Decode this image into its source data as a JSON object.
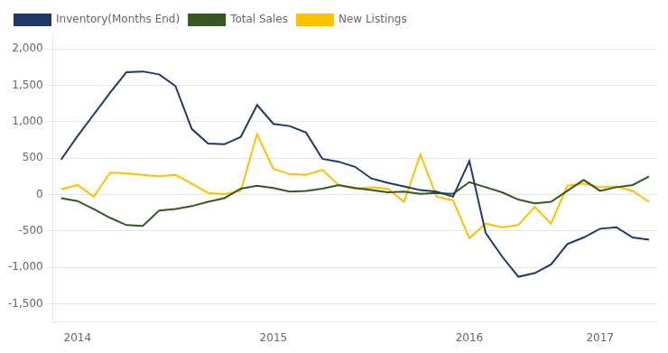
{
  "chart_data": {
    "type": "line",
    "categories": [
      null,
      "2014",
      null,
      null,
      null,
      null,
      null,
      null,
      null,
      null,
      null,
      null,
      null,
      "2015",
      null,
      null,
      null,
      null,
      null,
      null,
      null,
      null,
      null,
      null,
      null,
      "2016",
      null,
      null,
      null,
      null,
      null,
      null,
      null,
      "2017",
      null,
      null,
      null
    ],
    "series": [
      {
        "name": "Inventory(Months End)",
        "color": "#1F3864",
        "values": [
          480,
          800,
          1100,
          1400,
          1680,
          1690,
          1650,
          1490,
          900,
          700,
          690,
          790,
          1230,
          970,
          940,
          850,
          490,
          450,
          380,
          220,
          160,
          110,
          60,
          40,
          -30,
          460,
          -530,
          -850,
          -1130,
          -1080,
          -960,
          -680,
          -590,
          -470,
          -450,
          -590,
          -620
        ]
      },
      {
        "name": "Total Sales",
        "color": "#375623",
        "values": [
          -50,
          -90,
          -200,
          -320,
          -420,
          -430,
          -220,
          -200,
          -160,
          -100,
          -50,
          80,
          120,
          90,
          40,
          50,
          80,
          130,
          90,
          60,
          30,
          40,
          10,
          20,
          10,
          170,
          100,
          30,
          -70,
          -120,
          -100,
          50,
          200,
          50,
          100,
          130,
          250
        ]
      },
      {
        "name": "New Listings",
        "color": "#FFC000",
        "values": [
          70,
          130,
          -30,
          300,
          290,
          270,
          250,
          270,
          150,
          20,
          5,
          50,
          830,
          350,
          280,
          270,
          340,
          130,
          80,
          100,
          80,
          -100,
          550,
          -30,
          -80,
          -600,
          -400,
          -450,
          -420,
          -170,
          -400,
          120,
          150,
          100,
          110,
          50,
          -100
        ]
      }
    ],
    "ylim": [
      -1750,
      2200
    ],
    "yticks": [
      {
        "value": -1500,
        "label": "-1,500"
      },
      {
        "value": -1000,
        "label": "-1,000"
      },
      -500,
      0,
      500,
      {
        "value": 1000,
        "label": "1,000"
      },
      {
        "value": 1500,
        "label": "1,500"
      },
      {
        "value": 2000,
        "label": "2,000"
      }
    ],
    "grid": true,
    "legend": "upper left"
  }
}
